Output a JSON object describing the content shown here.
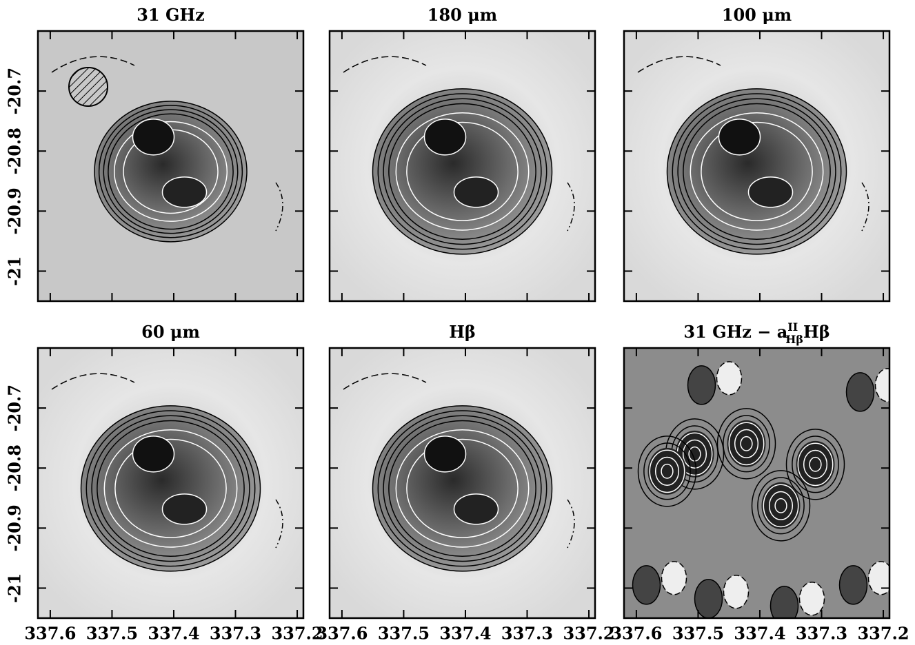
{
  "chart_data": [
    {
      "type": "contour",
      "title": "31 GHz",
      "xlim": [
        337.62,
        337.19
      ],
      "ylim": [
        -21.05,
        -20.6
      ],
      "xticks": [
        337.6,
        337.5,
        337.4,
        337.3,
        337.2
      ],
      "yticks": [
        -20.7,
        -20.8,
        -20.9,
        -21
      ]
    },
    {
      "type": "contour",
      "title": "180 μm",
      "xlim": [
        337.62,
        337.19
      ],
      "ylim": [
        -21.05,
        -20.6
      ],
      "xticks": [
        337.6,
        337.5,
        337.4,
        337.3,
        337.2
      ],
      "yticks": [
        -20.7,
        -20.8,
        -20.9,
        -21
      ]
    },
    {
      "type": "contour",
      "title": "100 μm",
      "xlim": [
        337.62,
        337.19
      ],
      "ylim": [
        -21.05,
        -20.6
      ],
      "xticks": [
        337.6,
        337.5,
        337.4,
        337.3,
        337.2
      ],
      "yticks": [
        -20.7,
        -20.8,
        -20.9,
        -21
      ]
    },
    {
      "type": "contour",
      "title": "60 μm",
      "xlim": [
        337.62,
        337.19
      ],
      "ylim": [
        -21.05,
        -20.6
      ],
      "xticks": [
        337.6,
        337.5,
        337.4,
        337.3,
        337.2
      ],
      "yticks": [
        -20.7,
        -20.8,
        -20.9,
        -21
      ]
    },
    {
      "type": "contour",
      "title": "Hβ",
      "xlim": [
        337.62,
        337.19
      ],
      "ylim": [
        -21.05,
        -20.6
      ],
      "xticks": [
        337.6,
        337.5,
        337.4,
        337.3,
        337.2
      ],
      "yticks": [
        -20.7,
        -20.8,
        -20.9,
        -21
      ]
    },
    {
      "type": "contour",
      "title": "31 GHz − a",
      "title_sup": "II",
      "title_sub": "Hβ",
      "title_end": "Hβ",
      "xlim": [
        337.62,
        337.19
      ],
      "ylim": [
        -21.05,
        -20.6
      ],
      "xticks": [
        337.6,
        337.5,
        337.4,
        337.3,
        337.2
      ],
      "yticks": [
        -20.7,
        -20.8,
        -20.9,
        -21
      ]
    }
  ]
}
